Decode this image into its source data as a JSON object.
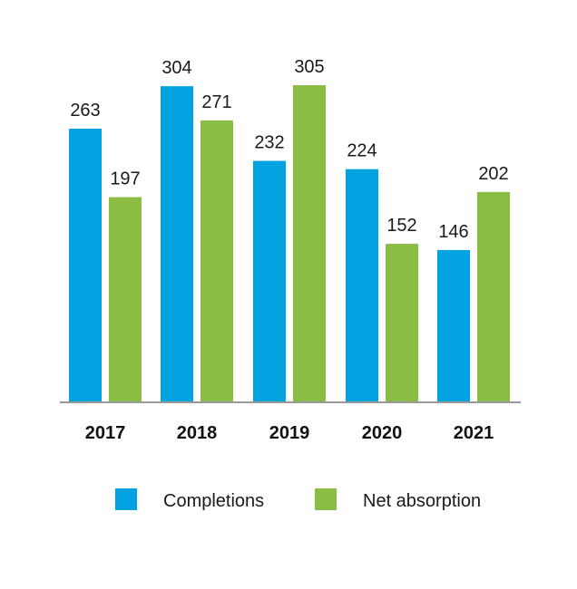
{
  "chart_data": {
    "type": "bar",
    "categories": [
      "2017",
      "2018",
      "2019",
      "2020",
      "2021"
    ],
    "series": [
      {
        "name": "Completions",
        "values": [
          263,
          304,
          232,
          224,
          146
        ],
        "color": "#00a3e0"
      },
      {
        "name": "Net absorption",
        "values": [
          197,
          271,
          305,
          152,
          202
        ],
        "color": "#8bbd45"
      }
    ],
    "ylim": [
      0,
      305
    ],
    "grid": false,
    "legend_position": "bottom",
    "axis_color": "#999999"
  }
}
